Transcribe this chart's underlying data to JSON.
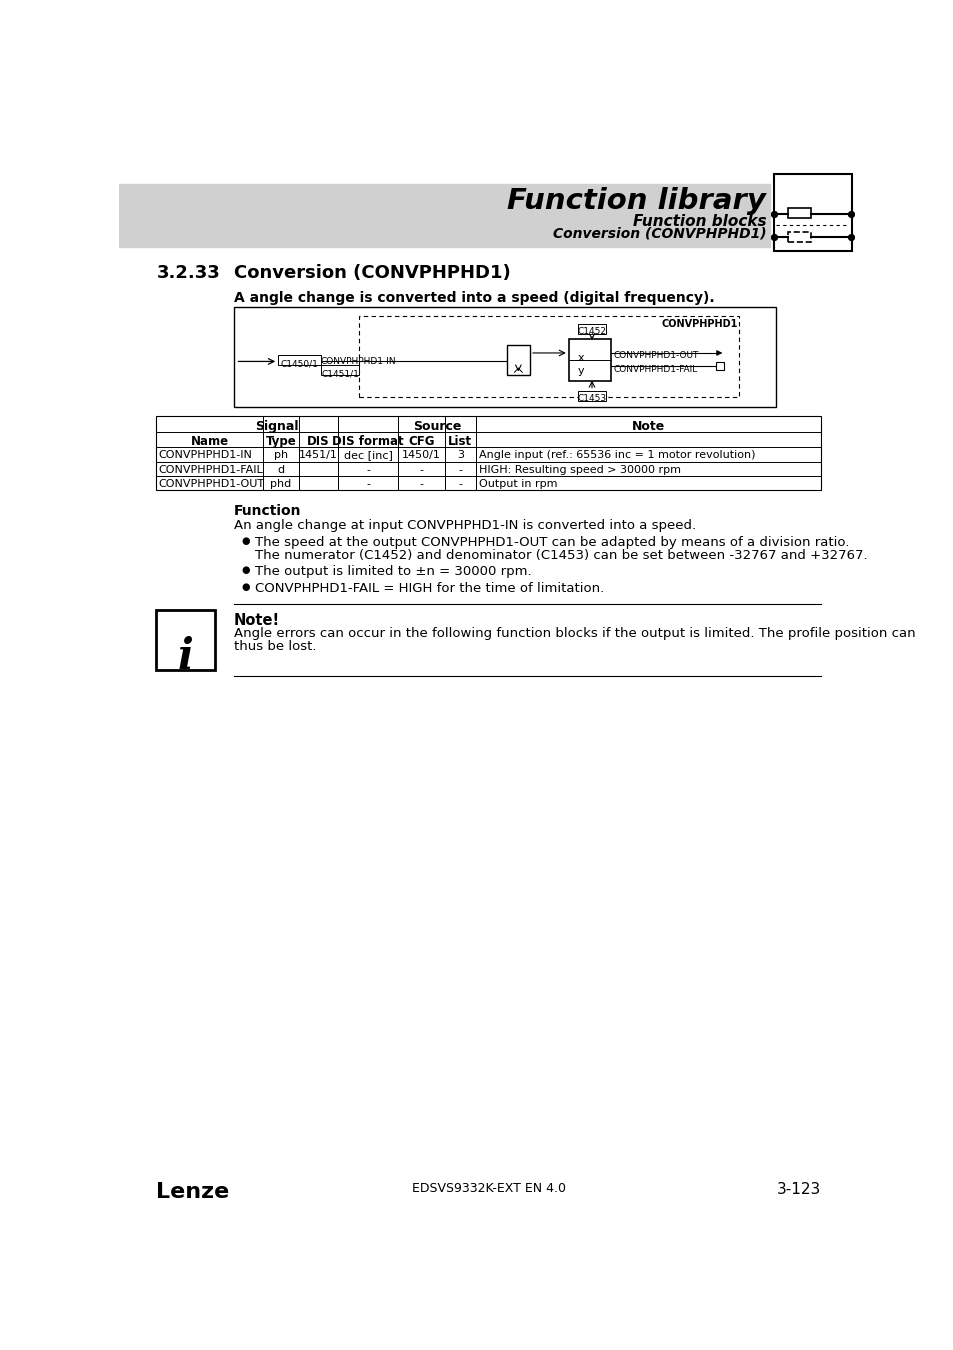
{
  "page_bg": "#ffffff",
  "header_bg": "#d0d0d0",
  "header_title": "Function library",
  "header_sub1": "Function blocks",
  "header_sub2": "Conversion (CONVPHPHD1)",
  "section_number": "3.2.33",
  "section_title": "Conversion (CONVPHPHD1)",
  "subtitle": "A angle change is converted into a speed (digital frequency).",
  "table_rows": [
    [
      "CONVPHPHD1-IN",
      "ph",
      "1451/1",
      "dec [inc]",
      "1450/1",
      "3",
      "Angle input (ref.: 65536 inc = 1 motor revolution)"
    ],
    [
      "CONVPHPHD1-FAIL",
      "d",
      "",
      "-",
      "-",
      "-",
      "HIGH: Resulting speed > 30000 rpm"
    ],
    [
      "CONVPHPHD1-OUT",
      "phd",
      "",
      "-",
      "-",
      "-",
      "Output in rpm"
    ]
  ],
  "function_title": "Function",
  "function_text": "An angle change at input CONVPHPHD1-IN is converted into a speed.",
  "bullet1_line1": "The speed at the output CONVPHPHD1-OUT can be adapted by means of a division ratio.",
  "bullet1_line2": "The numerator (C1452) and denominator (C1453) can be set between -32767 and +32767.",
  "bullet2": "The output is limited to ±n = 30000 rpm.",
  "bullet3": "CONVPHPHD1-FAIL = HIGH for the time of limitation.",
  "note_title": "Note!",
  "note_text1": "Angle errors can occur in the following function blocks if the output is limited. The profile position can",
  "note_text2": "thus be lost.",
  "footer_left": "Lenze",
  "footer_center": "EDSVS9332K-EXT EN 4.0",
  "footer_right": "3-123"
}
